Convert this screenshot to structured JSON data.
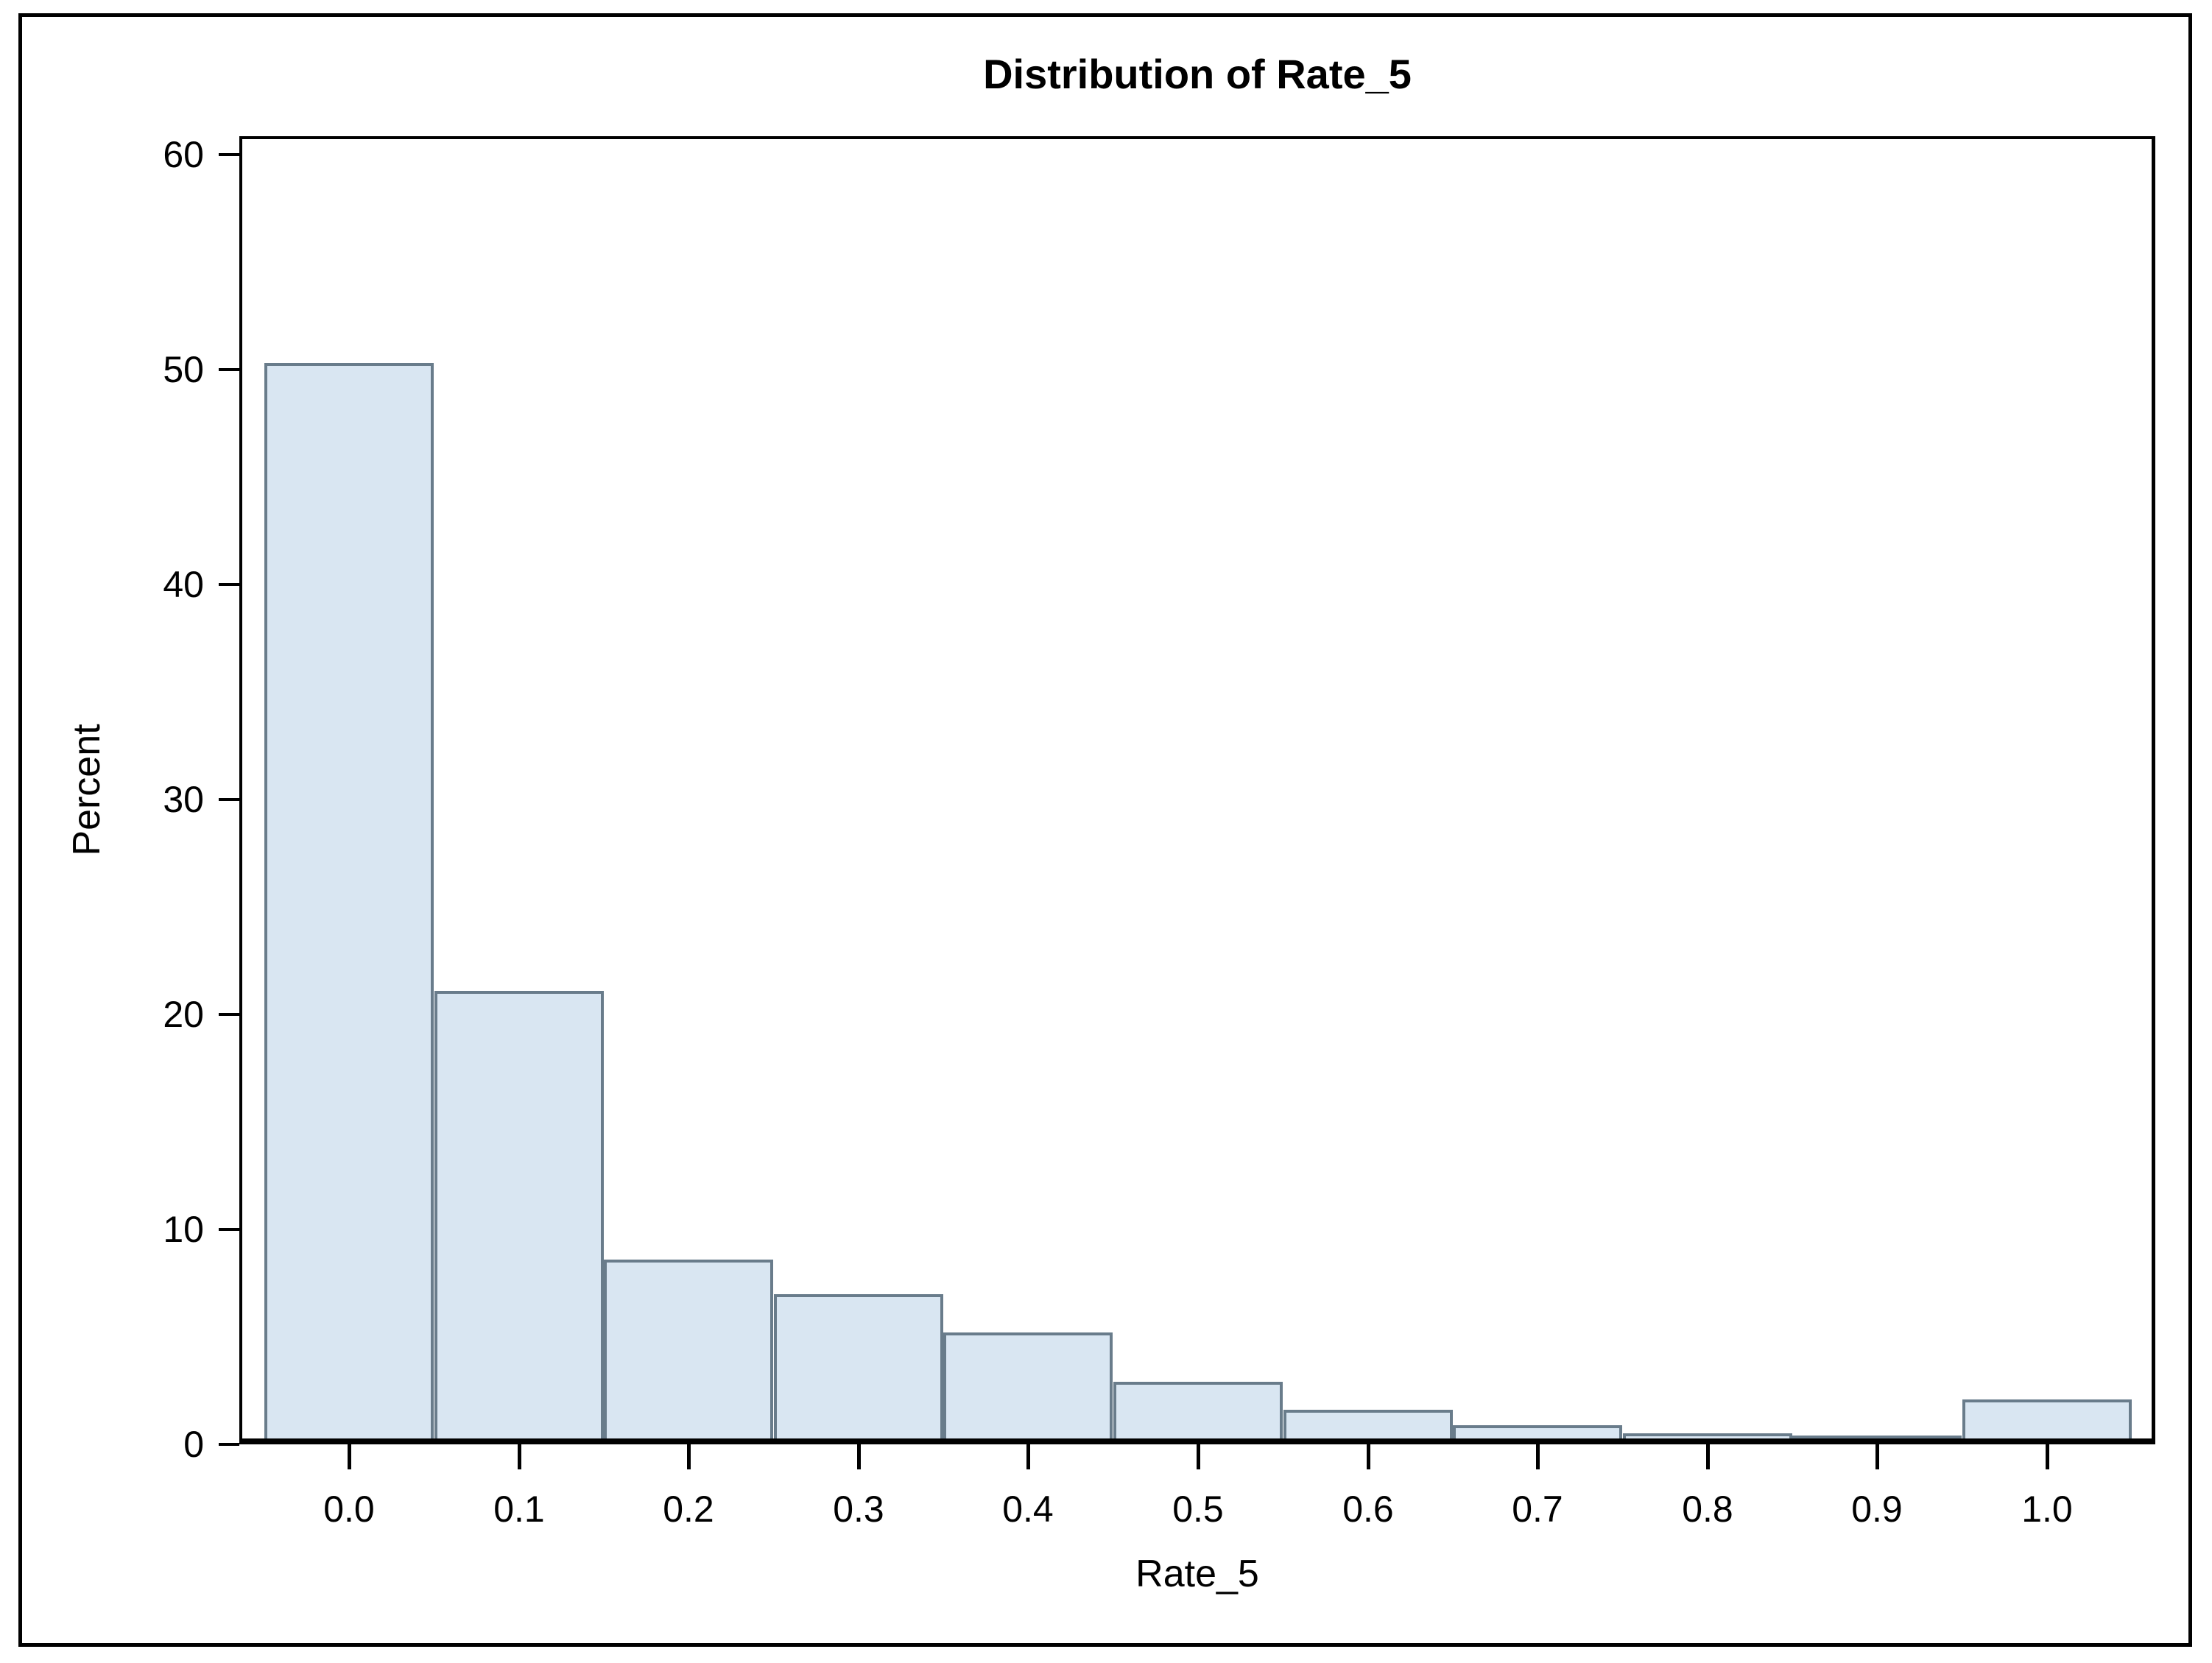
{
  "title": "Distribution of Rate_5",
  "colors": {
    "background": "#ffffff",
    "outer_border": "#000000",
    "axis": "#000000",
    "bar_fill": "#d9e6f2",
    "bar_edge": "#697c8b",
    "text": "#000000"
  },
  "chart_data": {
    "type": "bar",
    "subtype": "histogram",
    "title": "Distribution of Rate_5",
    "xlabel": "Rate_5",
    "ylabel": "Percent",
    "categories": [
      0.0,
      0.1,
      0.2,
      0.3,
      0.4,
      0.5,
      0.6,
      0.7,
      0.8,
      0.9,
      1.0
    ],
    "values": [
      50.3,
      21.1,
      8.6,
      7.0,
      5.2,
      2.9,
      1.6,
      0.9,
      0.5,
      0.4,
      2.1
    ],
    "bin_width": 0.1,
    "xlim": [
      -0.065,
      1.065
    ],
    "ylim": [
      0,
      60.85
    ],
    "yticks": [
      0,
      10,
      20,
      30,
      40,
      50,
      60
    ],
    "ytick_labels": [
      "0",
      "10",
      "20",
      "30",
      "40",
      "50",
      "60"
    ],
    "xticks": [
      0.0,
      0.1,
      0.2,
      0.3,
      0.4,
      0.5,
      0.6,
      0.7,
      0.8,
      0.9,
      1.0
    ],
    "xtick_labels": [
      "0.0",
      "0.1",
      "0.2",
      "0.3",
      "0.4",
      "0.5",
      "0.6",
      "0.7",
      "0.8",
      "0.9",
      "1.0"
    ],
    "grid": false,
    "legend": null
  }
}
